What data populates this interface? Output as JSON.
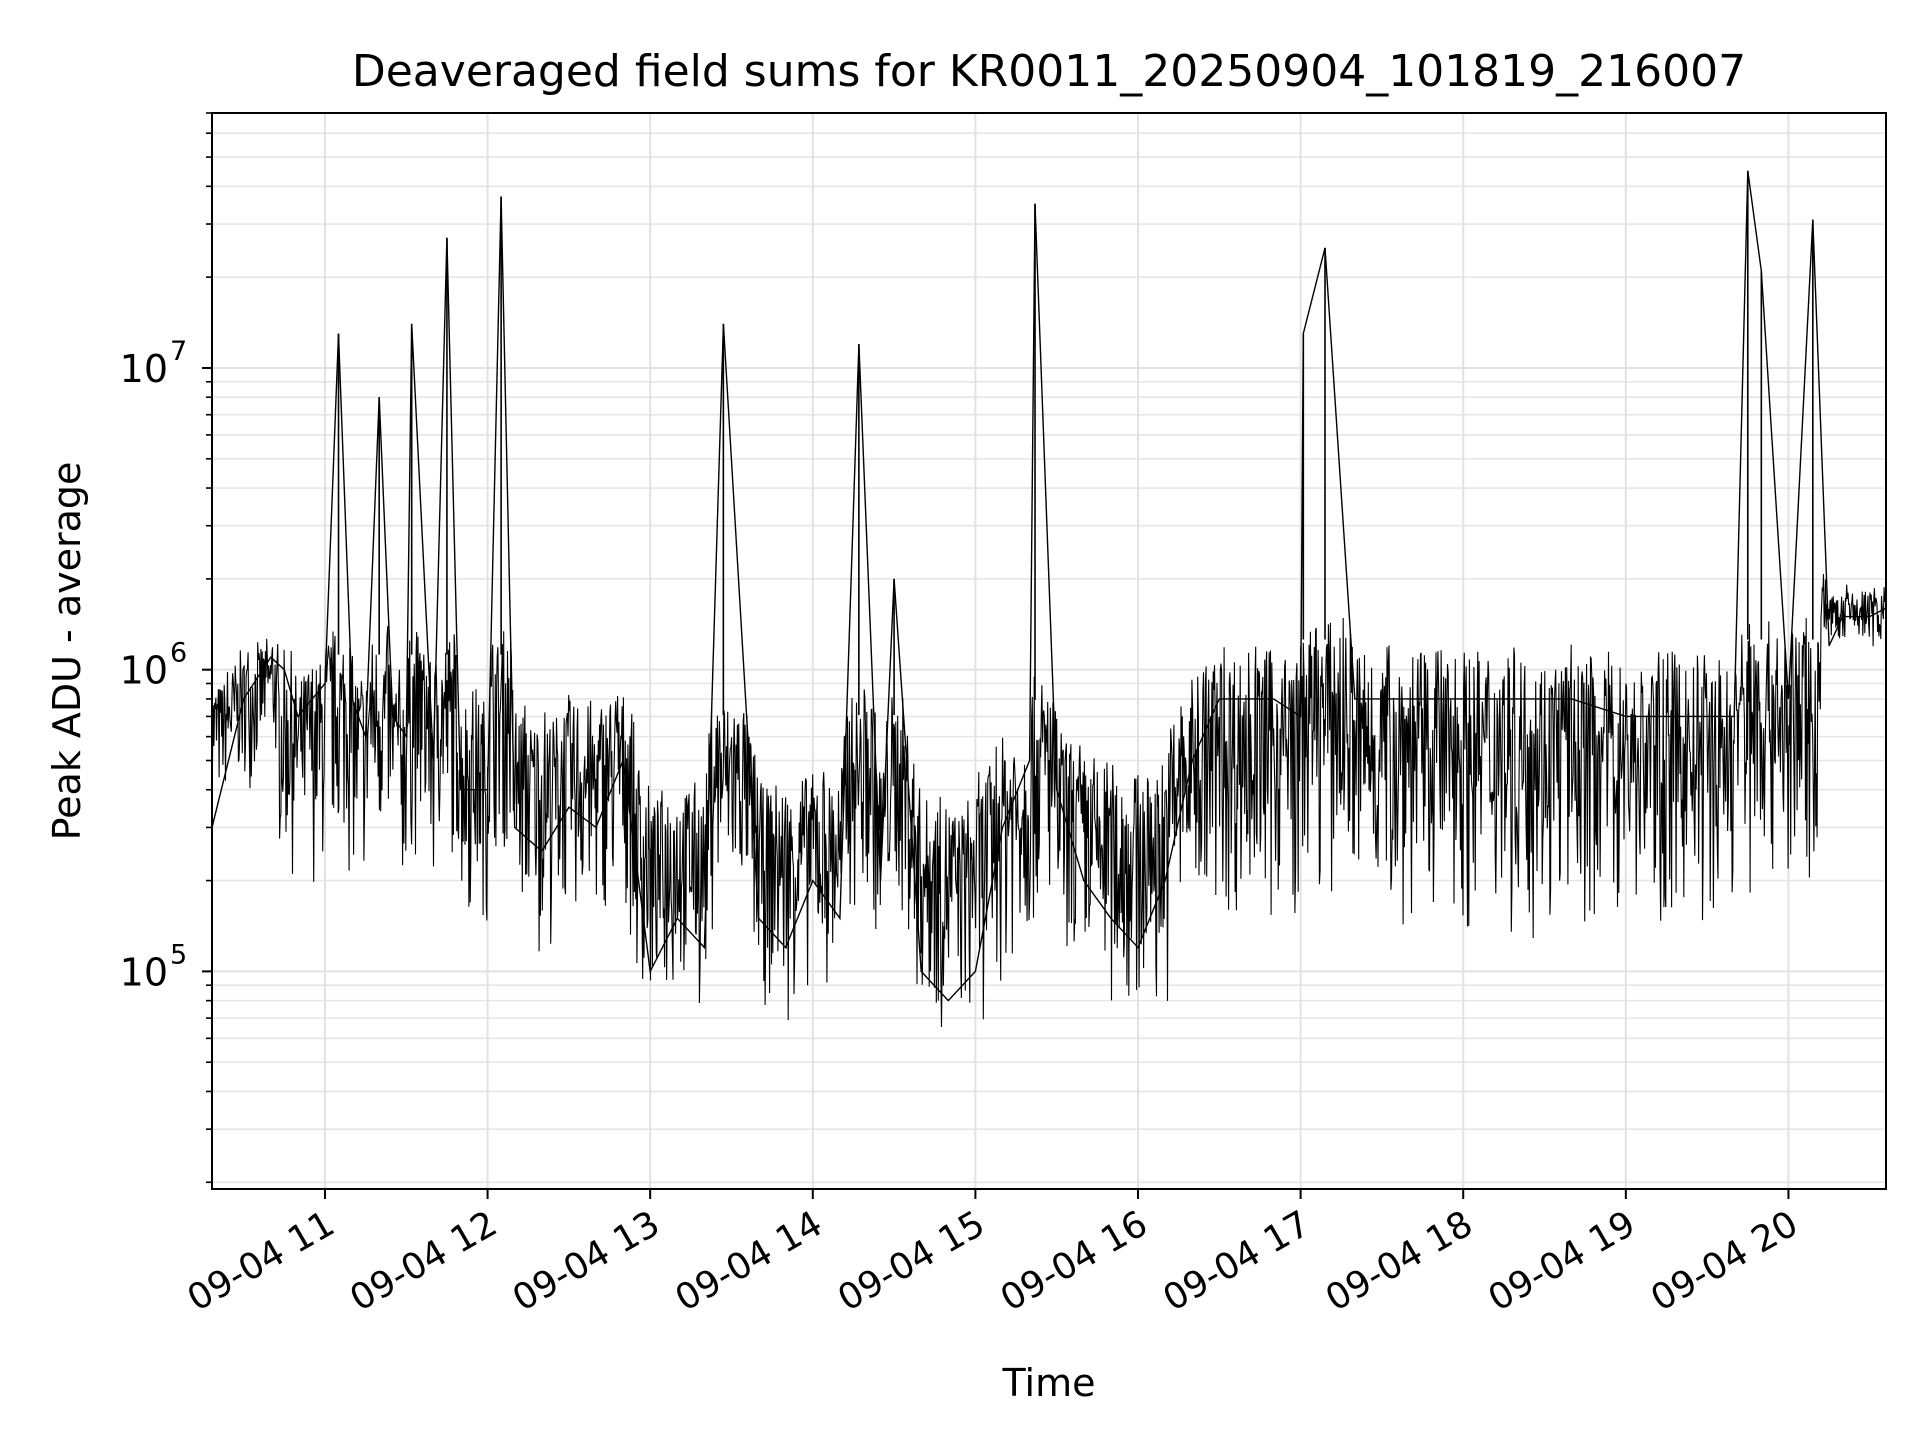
{
  "chart_data": {
    "type": "line",
    "title": "Deaveraged field sums for KR0011_20250904_101819_216007",
    "xlabel": "Time",
    "ylabel": "Peak ADU - average",
    "y_scale": "log",
    "grid": true,
    "legend": "none",
    "xlim": [
      "09-04 10:18:19",
      "09-04 20:36"
    ],
    "ylim": [
      19000,
      70000000
    ],
    "x_ticks": [
      "09-04 11",
      "09-04 12",
      "09-04 13",
      "09-04 14",
      "09-04 15",
      "09-04 16",
      "09-04 17",
      "09-04 18",
      "09-04 19",
      "09-04 20"
    ],
    "y_ticks": [
      {
        "value": 100000,
        "base": "10",
        "exp": "5"
      },
      {
        "value": 1000000,
        "base": "10",
        "exp": "6"
      },
      {
        "value": 10000000,
        "base": "10",
        "exp": "7"
      }
    ],
    "series": [
      {
        "color": "#000000",
        "x": [
          "09-04 10:18:19",
          "09-04 10:30",
          "09-04 10:40",
          "09-04 10:45",
          "09-04 10:50",
          "09-04 11:00",
          "09-04 11:05",
          "09-04 11:10",
          "09-04 11:15",
          "09-04 11:20",
          "09-04 11:25",
          "09-04 11:30",
          "09-04 11:32",
          "09-04 11:40",
          "09-04 11:45",
          "09-04 11:50",
          "09-04 12:00",
          "09-04 12:05",
          "09-04 12:10",
          "09-04 12:20",
          "09-04 12:30",
          "09-04 12:40",
          "09-04 12:50",
          "09-04 13:00",
          "09-04 13:10",
          "09-04 13:20",
          "09-04 13:27",
          "09-04 13:40",
          "09-04 13:50",
          "09-04 14:00",
          "09-04 14:10",
          "09-04 14:17",
          "09-04 14:25",
          "09-04 14:30",
          "09-04 14:40",
          "09-04 14:50",
          "09-04 15:00",
          "09-04 15:10",
          "09-04 15:20",
          "09-04 15:22",
          "09-04 15:30",
          "09-04 15:40",
          "09-04 15:50",
          "09-04 16:00",
          "09-04 16:10",
          "09-04 16:20",
          "09-04 16:30",
          "09-04 16:40",
          "09-04 16:50",
          "09-04 17:00",
          "09-04 17:01",
          "09-04 17:09",
          "09-04 17:20",
          "09-04 17:40",
          "09-04 18:00",
          "09-04 18:20",
          "09-04 18:40",
          "09-04 19:00",
          "09-04 19:20",
          "09-04 19:40",
          "09-04 19:45",
          "09-04 19:50",
          "09-04 20:00",
          "09-04 20:09",
          "09-04 20:15",
          "09-04 20:20",
          "09-04 20:30",
          "09-04 20:36"
        ],
        "values": [
          300000,
          800000,
          1100000,
          1000000,
          700000,
          900000,
          13000000,
          800000,
          600000,
          8000000,
          700000,
          600000,
          14000000,
          500000,
          27000000,
          400000,
          400000,
          37000000,
          300000,
          250000,
          350000,
          300000,
          500000,
          100000,
          150000,
          120000,
          14000000,
          150000,
          120000,
          200000,
          150000,
          12000000,
          200000,
          2000000,
          100000,
          80000,
          100000,
          300000,
          500000,
          35000000,
          400000,
          200000,
          150000,
          120000,
          200000,
          500000,
          800000,
          800000,
          800000,
          700000,
          13000000,
          25000000,
          800000,
          800000,
          800000,
          800000,
          800000,
          700000,
          700000,
          700000,
          45000000,
          21000000,
          800000,
          31000000,
          1200000,
          1500000,
          1500000,
          1600000
        ]
      }
    ]
  }
}
